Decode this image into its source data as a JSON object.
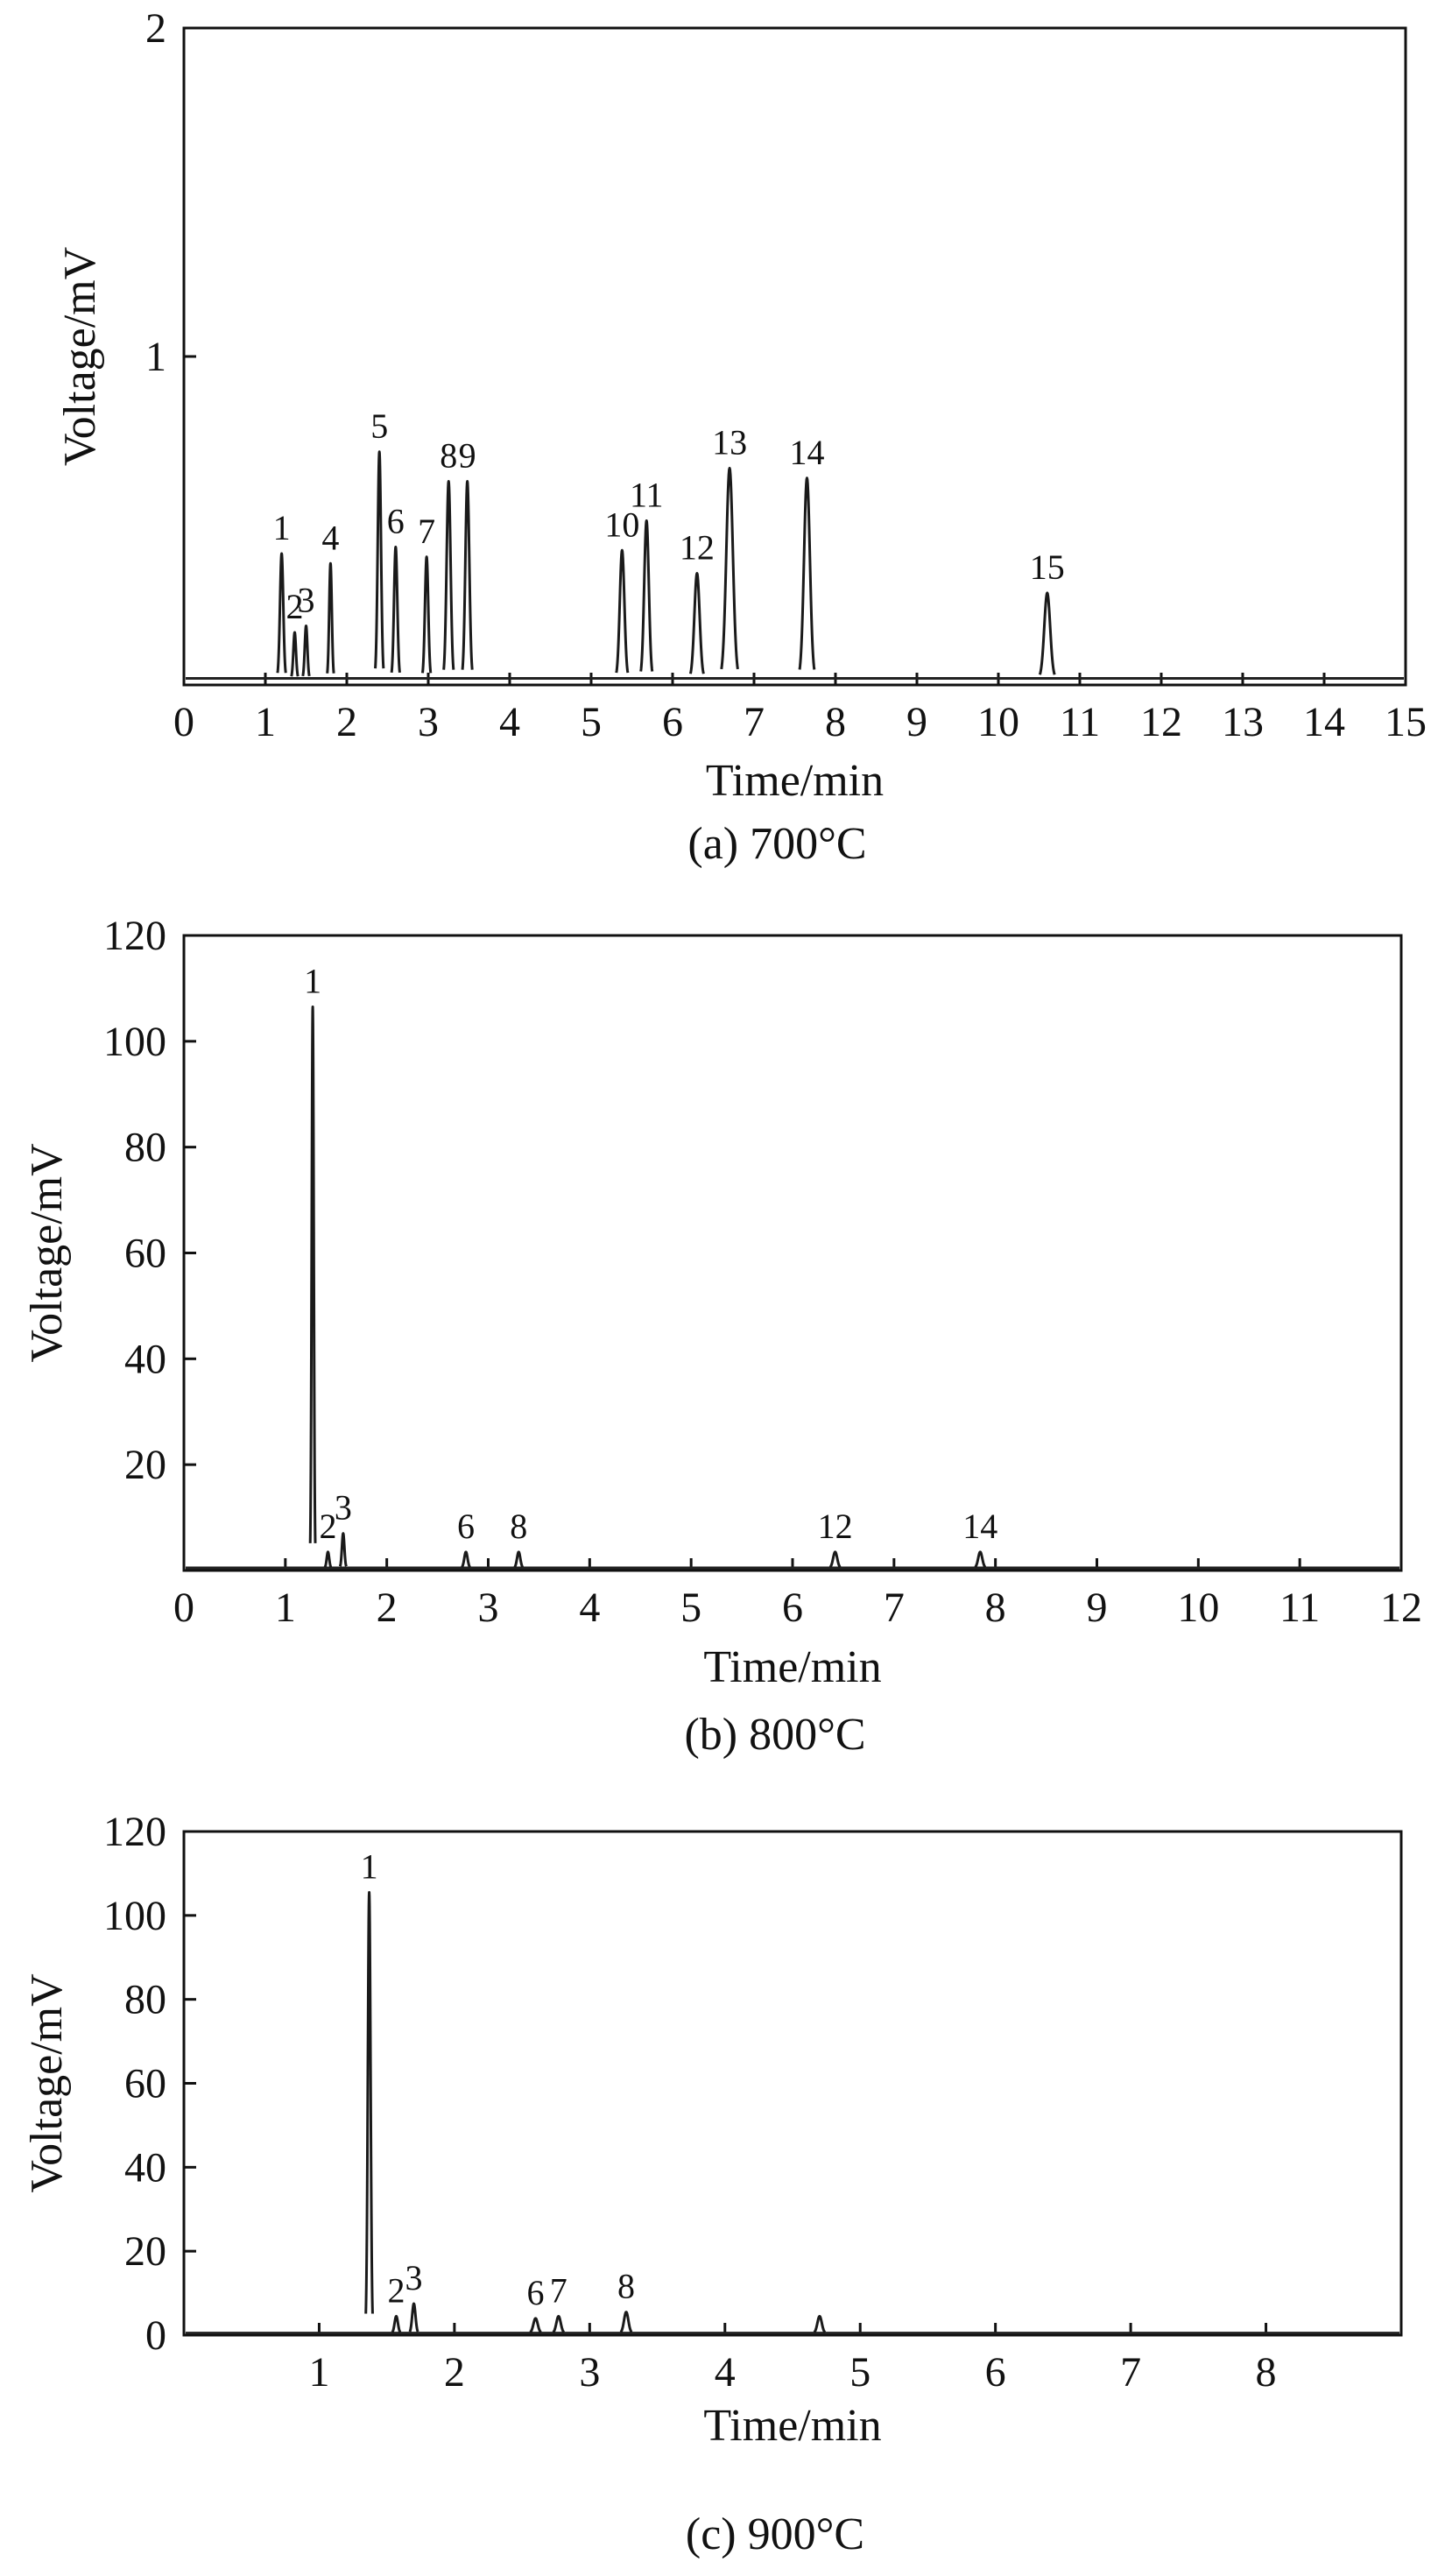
{
  "figure": {
    "description_panels": [
      "a",
      "b",
      "c"
    ]
  },
  "chart_data": [
    {
      "id": "a",
      "type": "line",
      "caption": "(a) 700°C",
      "xlabel": "Time/min",
      "ylabel": "Voltage/mV",
      "xlim": [
        0,
        15
      ],
      "ylim": [
        0,
        2
      ],
      "xticks": [
        0,
        1,
        2,
        3,
        4,
        5,
        6,
        7,
        8,
        9,
        10,
        11,
        12,
        13,
        14,
        15
      ],
      "yticks": [
        0,
        1,
        2
      ],
      "xtick_labels": [
        "0",
        "1",
        "2",
        "3",
        "4",
        "5",
        "6",
        "7",
        "8",
        "9",
        "10",
        "11",
        "12",
        "13",
        "14",
        "15"
      ],
      "ytick_labels": [
        "",
        "1",
        "2"
      ],
      "baseline": 0.02,
      "peaks": [
        {
          "label": "1",
          "t": 1.2,
          "h": 0.38,
          "w": 0.05
        },
        {
          "label": "2",
          "t": 1.36,
          "h": 0.14,
          "w": 0.04
        },
        {
          "label": "3",
          "t": 1.5,
          "h": 0.16,
          "w": 0.04
        },
        {
          "label": "4",
          "t": 1.8,
          "h": 0.35,
          "w": 0.04
        },
        {
          "label": "5",
          "t": 2.4,
          "h": 0.69,
          "w": 0.05
        },
        {
          "label": "6",
          "t": 2.6,
          "h": 0.4,
          "w": 0.05
        },
        {
          "label": "7",
          "t": 2.98,
          "h": 0.37,
          "w": 0.05
        },
        {
          "label": "8",
          "t": 3.25,
          "h": 0.6,
          "w": 0.06
        },
        {
          "label": "9",
          "t": 3.48,
          "h": 0.6,
          "w": 0.06
        },
        {
          "label": "10",
          "t": 5.38,
          "h": 0.39,
          "w": 0.07
        },
        {
          "label": "11",
          "t": 5.68,
          "h": 0.48,
          "w": 0.07
        },
        {
          "label": "12",
          "t": 6.3,
          "h": 0.32,
          "w": 0.08
        },
        {
          "label": "13",
          "t": 6.7,
          "h": 0.64,
          "w": 0.1
        },
        {
          "label": "14",
          "t": 7.65,
          "h": 0.61,
          "w": 0.09
        },
        {
          "label": "15",
          "t": 10.6,
          "h": 0.26,
          "w": 0.09
        }
      ]
    },
    {
      "id": "b",
      "type": "line",
      "caption": "(b) 800°C",
      "xlabel": "Time/min",
      "ylabel": "Voltage/mV",
      "xlim": [
        0,
        12
      ],
      "ylim": [
        0,
        120
      ],
      "xticks": [
        0,
        1,
        2,
        3,
        4,
        5,
        6,
        7,
        8,
        9,
        10,
        11,
        12
      ],
      "yticks": [
        0,
        20,
        40,
        60,
        80,
        100,
        120
      ],
      "xtick_labels": [
        "0",
        "1",
        "2",
        "3",
        "4",
        "5",
        "6",
        "7",
        "8",
        "9",
        "10",
        "11",
        "12"
      ],
      "ytick_labels": [
        "",
        "20",
        "40",
        "60",
        "80",
        "100",
        "120"
      ],
      "baseline": 0.5,
      "peaks": [
        {
          "label": "1",
          "t": 1.27,
          "h": 106,
          "w": 0.025
        },
        {
          "label": "2",
          "t": 1.42,
          "h": 3,
          "w": 0.03
        },
        {
          "label": "3",
          "t": 1.57,
          "h": 6.5,
          "w": 0.03
        },
        {
          "label": "6",
          "t": 2.78,
          "h": 3,
          "w": 0.04
        },
        {
          "label": "8",
          "t": 3.3,
          "h": 3,
          "w": 0.04
        },
        {
          "label": "12",
          "t": 6.42,
          "h": 3,
          "w": 0.05
        },
        {
          "label": "14",
          "t": 7.85,
          "h": 3,
          "w": 0.05
        }
      ]
    },
    {
      "id": "c",
      "type": "line",
      "caption": "(c) 900°C",
      "xlabel": "Time/min",
      "ylabel": "Voltage/mV",
      "xlim": [
        0,
        9
      ],
      "ylim": [
        0,
        120
      ],
      "xticks": [
        1,
        2,
        3,
        4,
        5,
        6,
        7,
        8
      ],
      "yticks": [
        0,
        20,
        40,
        60,
        80,
        100,
        120
      ],
      "xtick_labels": [
        "1",
        "2",
        "3",
        "4",
        "5",
        "6",
        "7",
        "8"
      ],
      "ytick_labels": [
        "0",
        "20",
        "40",
        "60",
        "80",
        "100",
        "120"
      ],
      "baseline": 0.5,
      "peaks": [
        {
          "label": "1",
          "t": 1.37,
          "h": 105,
          "w": 0.025
        },
        {
          "label": "2",
          "t": 1.57,
          "h": 4,
          "w": 0.03
        },
        {
          "label": "3",
          "t": 1.7,
          "h": 7,
          "w": 0.03
        },
        {
          "label": "6",
          "t": 2.6,
          "h": 3.5,
          "w": 0.04
        },
        {
          "label": "7",
          "t": 2.77,
          "h": 4,
          "w": 0.04
        },
        {
          "label": "8",
          "t": 3.27,
          "h": 5,
          "w": 0.04
        },
        {
          "label": "",
          "t": 4.7,
          "h": 4,
          "w": 0.04
        }
      ]
    }
  ]
}
